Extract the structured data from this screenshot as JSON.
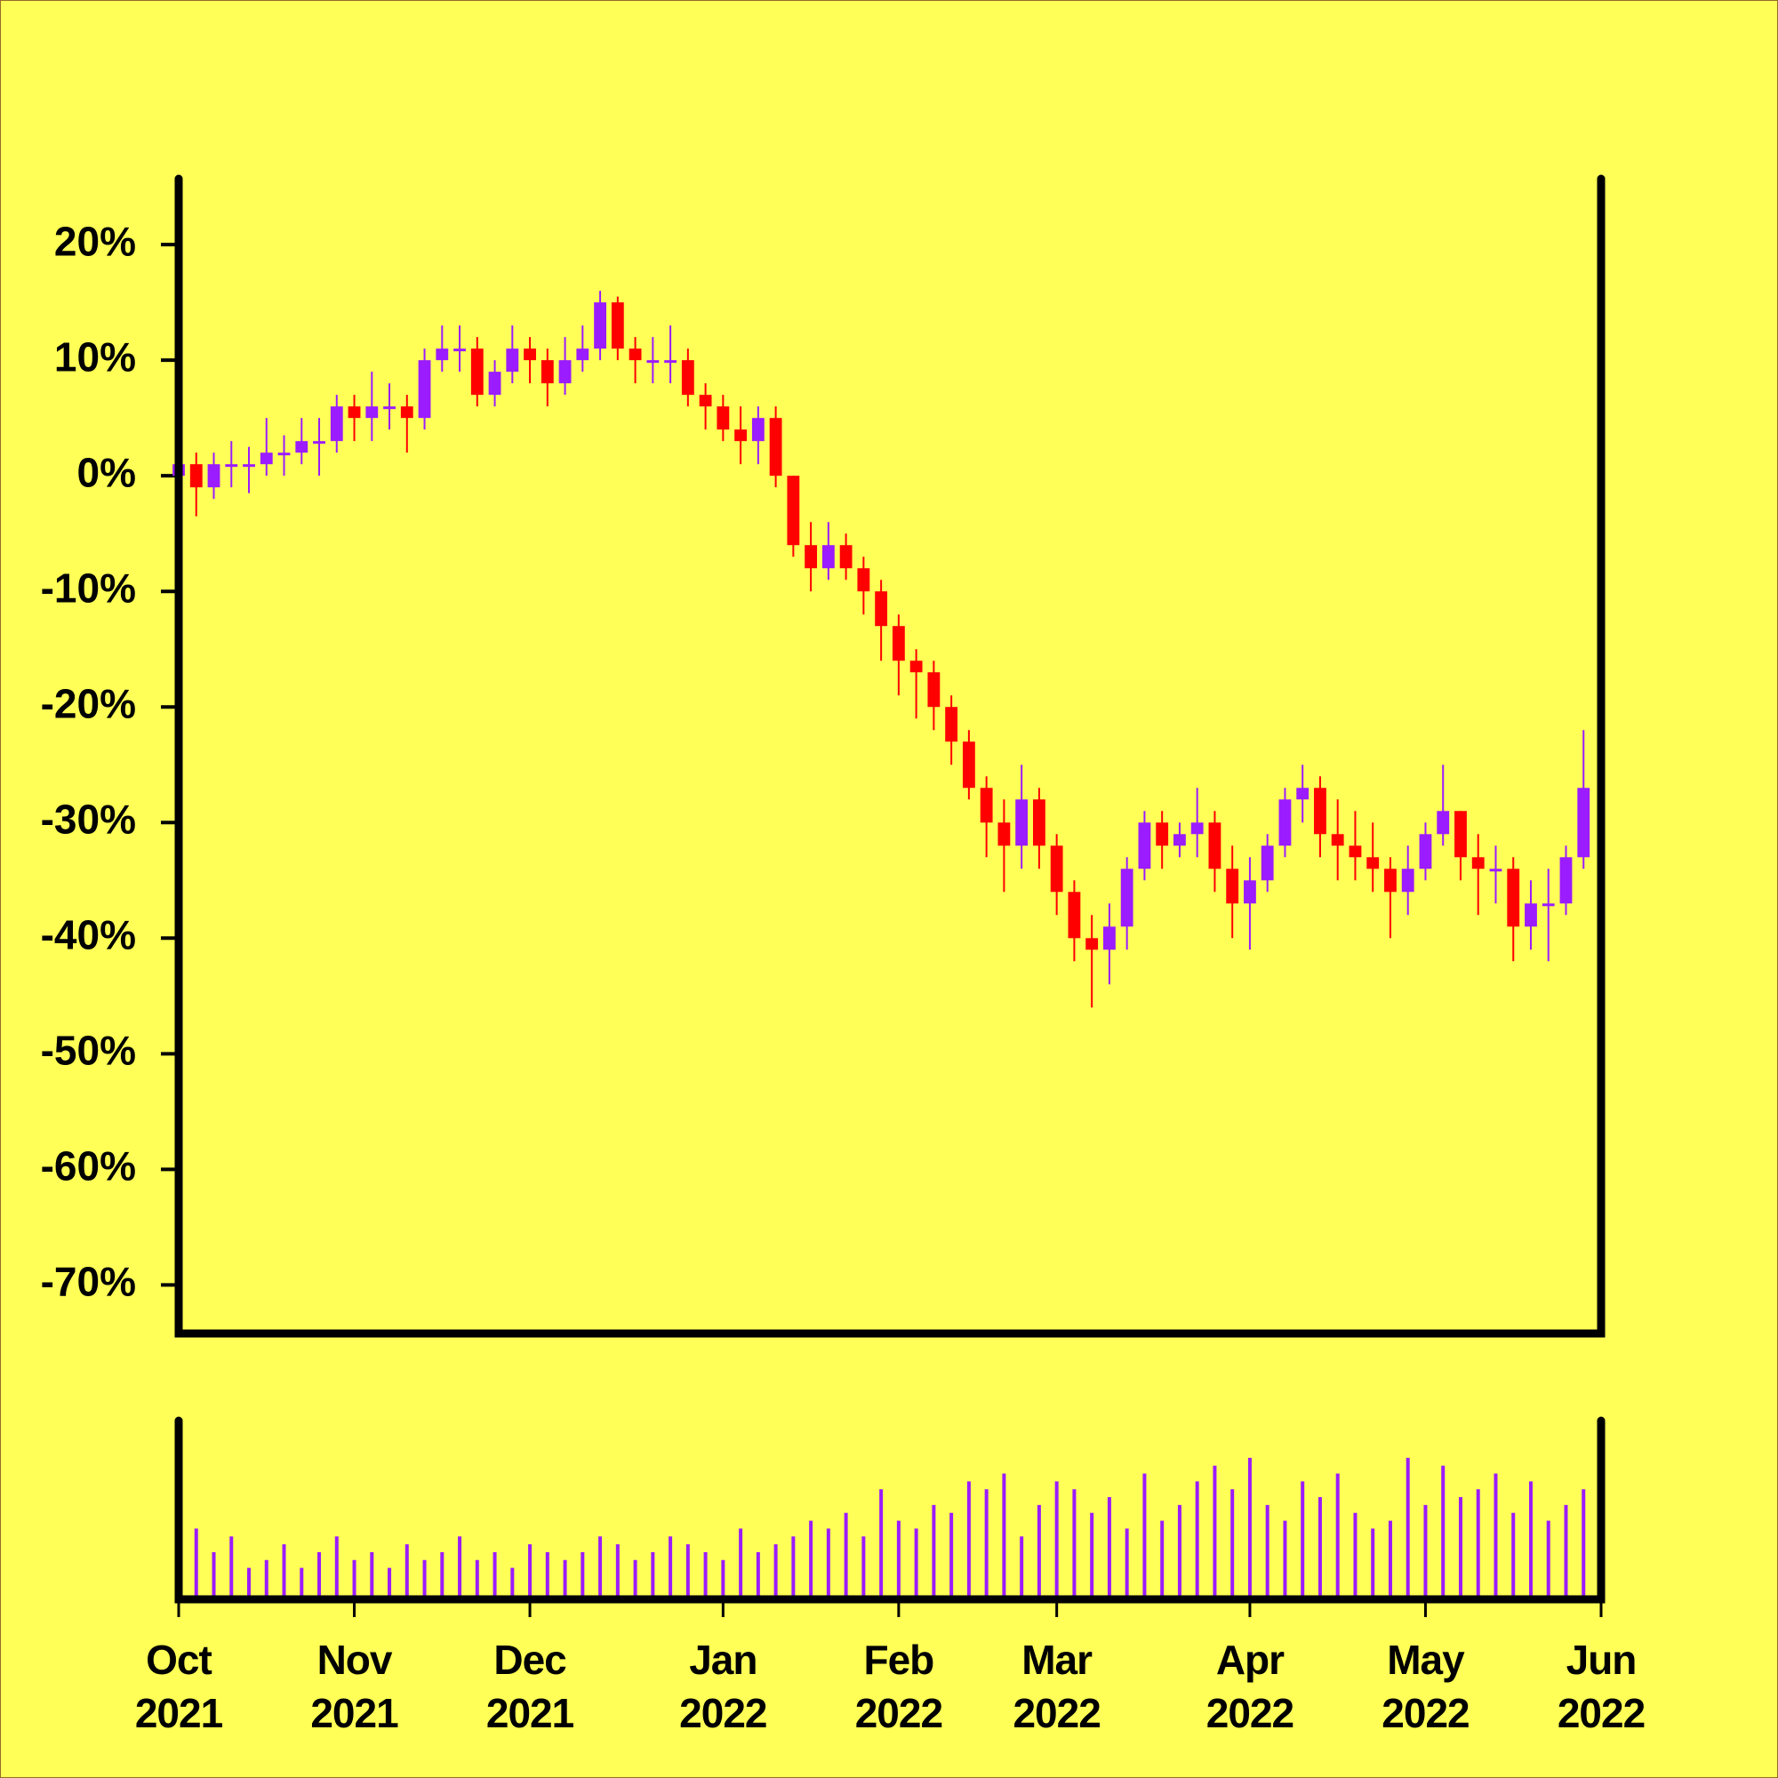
{
  "chart_data": {
    "type": "candlestick",
    "categories": [
      "Oct 2021",
      null,
      null,
      null,
      null,
      null,
      null,
      null,
      null,
      null,
      "Nov 2021",
      null,
      null,
      null,
      null,
      null,
      null,
      null,
      null,
      null,
      "Dec 2021",
      null,
      null,
      null,
      null,
      null,
      null,
      null,
      null,
      null,
      null,
      "Jan 2022",
      null,
      null,
      null,
      null,
      null,
      null,
      null,
      null,
      null,
      "Feb 2022",
      null,
      null,
      null,
      null,
      null,
      null,
      null,
      null,
      "Mar 2022",
      null,
      null,
      null,
      null,
      null,
      null,
      null,
      null,
      null,
      null,
      "Apr 2022",
      null,
      null,
      null,
      null,
      null,
      null,
      null,
      null,
      null,
      "May 2022",
      null,
      null,
      null,
      null,
      null,
      null,
      null,
      null,
      null,
      "Jun 2022"
    ],
    "open": [
      0,
      1,
      -1,
      1,
      1,
      1,
      2,
      2,
      3,
      3,
      6,
      5,
      6,
      6,
      5,
      10,
      11,
      11,
      7,
      9,
      11,
      10,
      8,
      10,
      11,
      15,
      11,
      10,
      10,
      10,
      7,
      6,
      4,
      3,
      5,
      0,
      -6,
      -8,
      -6,
      -8,
      -10,
      -13,
      -16,
      -17,
      -20,
      -23,
      -27,
      -30,
      -32,
      -28,
      -32,
      -36,
      -40,
      -41,
      -39,
      -34,
      -30,
      -32,
      -31,
      -30,
      -34,
      -37,
      -35,
      -32,
      -28,
      -27,
      -31,
      -32,
      -33,
      -34,
      -36,
      -34,
      -31,
      -29,
      -33,
      -34,
      -34,
      -39,
      -37,
      -37,
      -33,
      null
    ],
    "high": [
      2.5,
      2,
      2,
      3,
      2.5,
      5,
      3.5,
      5,
      5,
      7,
      7,
      9,
      8,
      7,
      11,
      13,
      13,
      12,
      10,
      13,
      12,
      11,
      12,
      13,
      16,
      15.5,
      12,
      12,
      13,
      11,
      8,
      7,
      6,
      6,
      6,
      0,
      -4,
      -4,
      -5,
      -7,
      -9,
      -12,
      -15,
      -16,
      -19,
      -22,
      -26,
      -28,
      -25,
      -27,
      -31,
      -35,
      -38,
      -37,
      -33,
      -29,
      -29,
      -30,
      -27,
      -29,
      -32,
      -33,
      -31,
      -27,
      -25,
      -26,
      -28,
      -29,
      -30,
      -33,
      -32,
      -30,
      -25,
      -29,
      -31,
      -32,
      -33,
      -35,
      -34,
      -32,
      -22,
      null
    ],
    "low": [
      -1,
      -3.5,
      -2,
      -1,
      -1.5,
      0,
      0,
      1,
      0,
      2,
      3,
      3,
      4,
      2,
      4,
      9,
      9,
      6,
      6,
      8,
      8,
      6,
      7,
      9,
      10,
      10,
      8,
      8,
      8,
      6,
      4,
      3,
      1,
      1,
      -1,
      -7,
      -10,
      -9,
      -9,
      -12,
      -16,
      -19,
      -21,
      -22,
      -25,
      -28,
      -33,
      -36,
      -34,
      -34,
      -38,
      -42,
      -46,
      -44,
      -41,
      -35,
      -34,
      -33,
      -33,
      -36,
      -40,
      -41,
      -36,
      -33,
      -30,
      -33,
      -35,
      -35,
      -36,
      -40,
      -38,
      -35,
      -32,
      -35,
      -38,
      -37,
      -42,
      -41,
      -42,
      -38,
      -34,
      null
    ],
    "close": [
      1,
      -1,
      1,
      1,
      1,
      2,
      2,
      3,
      3,
      6,
      5,
      6,
      6,
      5,
      10,
      11,
      11,
      7,
      9,
      11,
      10,
      8,
      10,
      11,
      15,
      11,
      10,
      10,
      10,
      7,
      6,
      4,
      3,
      5,
      0,
      -6,
      -8,
      -6,
      -8,
      -10,
      -13,
      -16,
      -17,
      -20,
      -23,
      -27,
      -30,
      -32,
      -28,
      -32,
      -36,
      -40,
      -41,
      -39,
      -34,
      -30,
      -32,
      -31,
      -30,
      -34,
      -37,
      -35,
      -32,
      -28,
      -27,
      -31,
      -32,
      -33,
      -34,
      -36,
      -34,
      -31,
      -29,
      -33,
      -34,
      -34,
      -39,
      -37,
      -37,
      -33,
      -27,
      null
    ],
    "volume": [
      25,
      45,
      30,
      40,
      20,
      25,
      35,
      20,
      30,
      40,
      25,
      30,
      20,
      35,
      25,
      30,
      40,
      25,
      30,
      20,
      35,
      30,
      25,
      30,
      40,
      35,
      25,
      30,
      40,
      35,
      30,
      25,
      45,
      30,
      35,
      40,
      50,
      45,
      55,
      40,
      70,
      50,
      45,
      60,
      55,
      75,
      70,
      80,
      40,
      60,
      75,
      70,
      55,
      65,
      45,
      80,
      50,
      60,
      75,
      85,
      70,
      90,
      60,
      50,
      75,
      65,
      80,
      55,
      45,
      50,
      90,
      60,
      85,
      65,
      70,
      80,
      55,
      75,
      50,
      60,
      70,
      null
    ],
    "up_color": "#9b1cff",
    "down_color": "#ff0000",
    "volume_color": "#9b1cff",
    "ylim": [
      -74.2,
      25.7
    ],
    "yticks": [
      {
        "value": 20,
        "label": "20%"
      },
      {
        "value": 10,
        "label": "10%"
      },
      {
        "value": 0,
        "label": "0%"
      },
      {
        "value": -10,
        "label": "-10%"
      },
      {
        "value": -20,
        "label": "-20%"
      },
      {
        "value": -30,
        "label": "-30%"
      },
      {
        "value": -40,
        "label": "-40%"
      },
      {
        "value": -50,
        "label": "-50%"
      },
      {
        "value": -60,
        "label": "-60%"
      },
      {
        "value": -70,
        "label": "-70%"
      }
    ],
    "volume_ylim": [
      0,
      108
    ]
  }
}
